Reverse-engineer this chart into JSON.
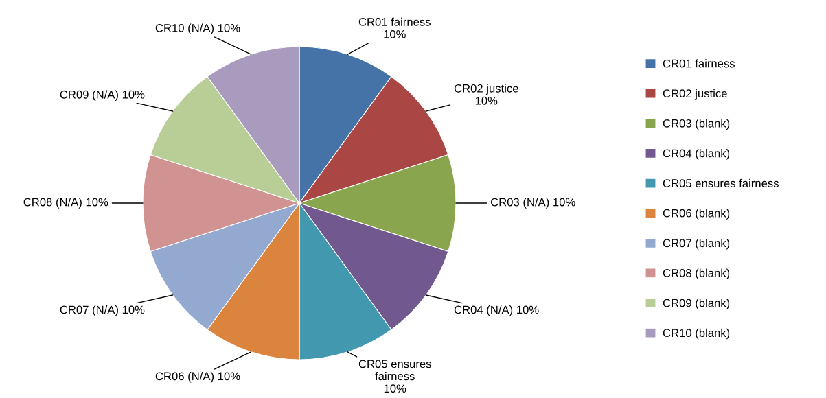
{
  "chart_data": {
    "type": "pie",
    "categories": [
      "CR01 fairness",
      "CR02 justice",
      "CR03 (blank)",
      "CR04 (blank)",
      "CR05 ensures fairness",
      "CR06 (blank)",
      "CR07 (blank)",
      "CR08 (blank)",
      "CR09 (blank)",
      "CR10 (blank)"
    ],
    "values": [
      10,
      10,
      10,
      10,
      10,
      10,
      10,
      10,
      10,
      10
    ],
    "colors": [
      "#4572a7",
      "#aa4643",
      "#89a54e",
      "#71588f",
      "#4198af",
      "#db843d",
      "#93a9cf",
      "#d19392",
      "#b9cd96",
      "#a99bbd"
    ],
    "value_labels": [
      "CR01 fairness\n10%",
      "CR02 justice\n10%",
      "CR03 (N/A) 10%",
      "CR04 (N/A) 10%",
      "CR05 ensures\nfairness\n10%",
      "CR06 (N/A) 10%",
      "CR07 (N/A) 10%",
      "CR08 (N/A) 10%",
      "CR09 (N/A) 10%",
      "CR10 (N/A) 10%"
    ],
    "legend": "right"
  }
}
